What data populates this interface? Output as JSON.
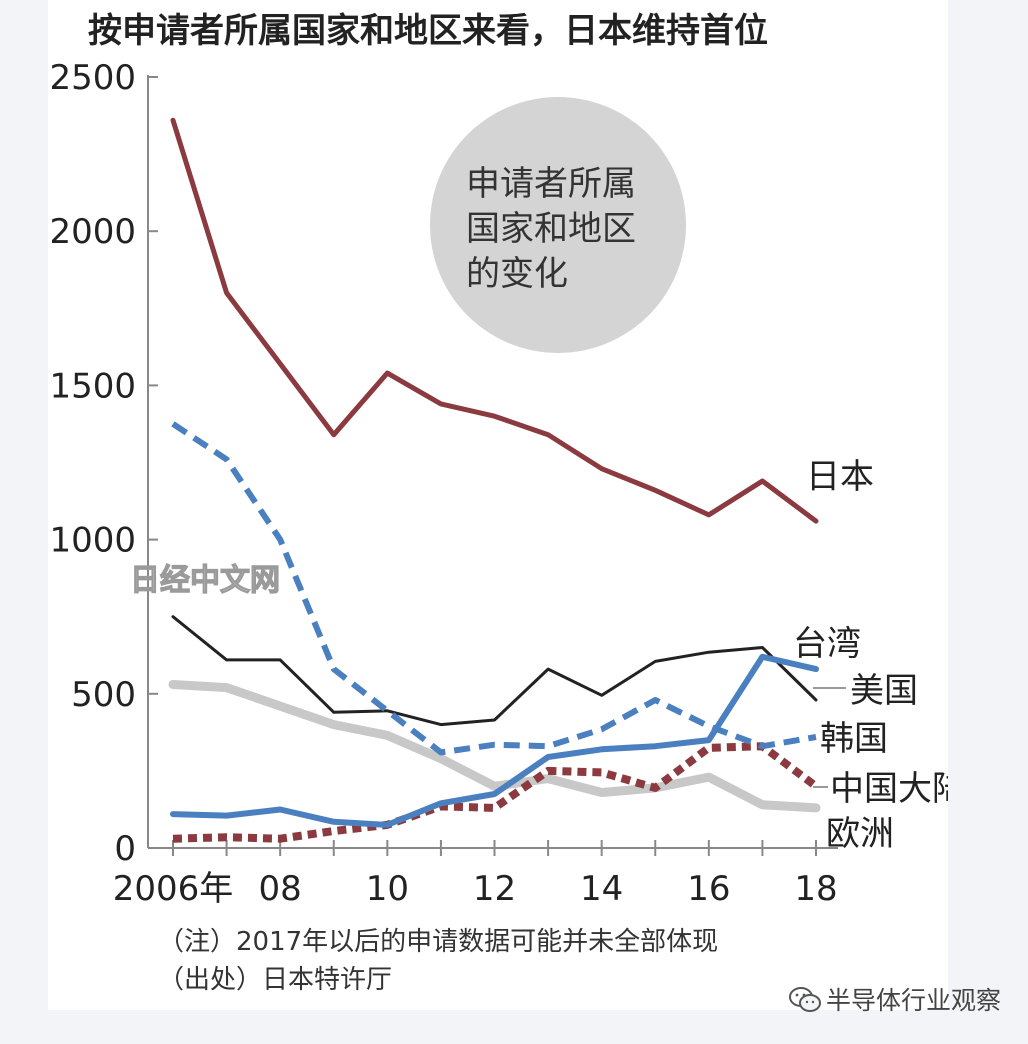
{
  "chart_data": {
    "type": "line",
    "title": "按申请者所属国家和地区来看，日本维持首位",
    "x": [
      2006,
      2007,
      2008,
      2009,
      2010,
      2011,
      2012,
      2013,
      2014,
      2015,
      2016,
      2017,
      2018
    ],
    "x_tick_labels": [
      {
        "x": 2006,
        "label": "2006年"
      },
      {
        "x": 2008,
        "label": "08"
      },
      {
        "x": 2010,
        "label": "10"
      },
      {
        "x": 2012,
        "label": "12"
      },
      {
        "x": 2014,
        "label": "14"
      },
      {
        "x": 2016,
        "label": "16"
      },
      {
        "x": 2018,
        "label": "18"
      }
    ],
    "ylim": [
      0,
      2500
    ],
    "y_ticks": [
      0,
      500,
      1000,
      1500,
      2000,
      2500
    ],
    "grid": false,
    "series": [
      {
        "name": "日本",
        "color": "#8b3a3f",
        "style": "solid",
        "width": 5,
        "values": [
          2360,
          1800,
          1570,
          1340,
          1540,
          1440,
          1400,
          1340,
          1230,
          1160,
          1080,
          1190,
          1060
        ]
      },
      {
        "name": "台湾",
        "color": "#222222",
        "style": "solid",
        "width": 3,
        "values": [
          750,
          610,
          610,
          440,
          445,
          400,
          415,
          580,
          495,
          605,
          635,
          650,
          480
        ]
      },
      {
        "name": "美国",
        "color": "#c8c8c8",
        "style": "solid",
        "width": 9,
        "values": [
          530,
          520,
          460,
          400,
          365,
          290,
          200,
          225,
          180,
          195,
          230,
          140,
          130
        ]
      },
      {
        "name": "韩国",
        "color": "#4a7fc0",
        "style": "dashed",
        "width": 6,
        "values": [
          1375,
          1260,
          1000,
          580,
          445,
          310,
          335,
          330,
          385,
          480,
          395,
          330,
          360
        ]
      },
      {
        "name": "中国大陆",
        "color": "#8b3a3f",
        "style": "dotted",
        "width": 8,
        "values": [
          30,
          35,
          30,
          55,
          75,
          135,
          130,
          250,
          245,
          195,
          325,
          330,
          200
        ]
      },
      {
        "name": "欧洲",
        "color": "#4a7fc0",
        "style": "solid",
        "width": 6,
        "values": [
          110,
          105,
          125,
          85,
          75,
          145,
          175,
          295,
          320,
          330,
          350,
          620,
          580
        ]
      }
    ],
    "annotation_circle": [
      "申请者所属",
      "国家和地区",
      "的变化"
    ],
    "watermark": "日经中文网",
    "notes": [
      "（注）2017年以后的申请数据可能并未全部体现",
      "（出处）日本特许厅"
    ]
  },
  "footer": {
    "source_label": "半导体行业观察",
    "icon": "wechat-icon"
  }
}
